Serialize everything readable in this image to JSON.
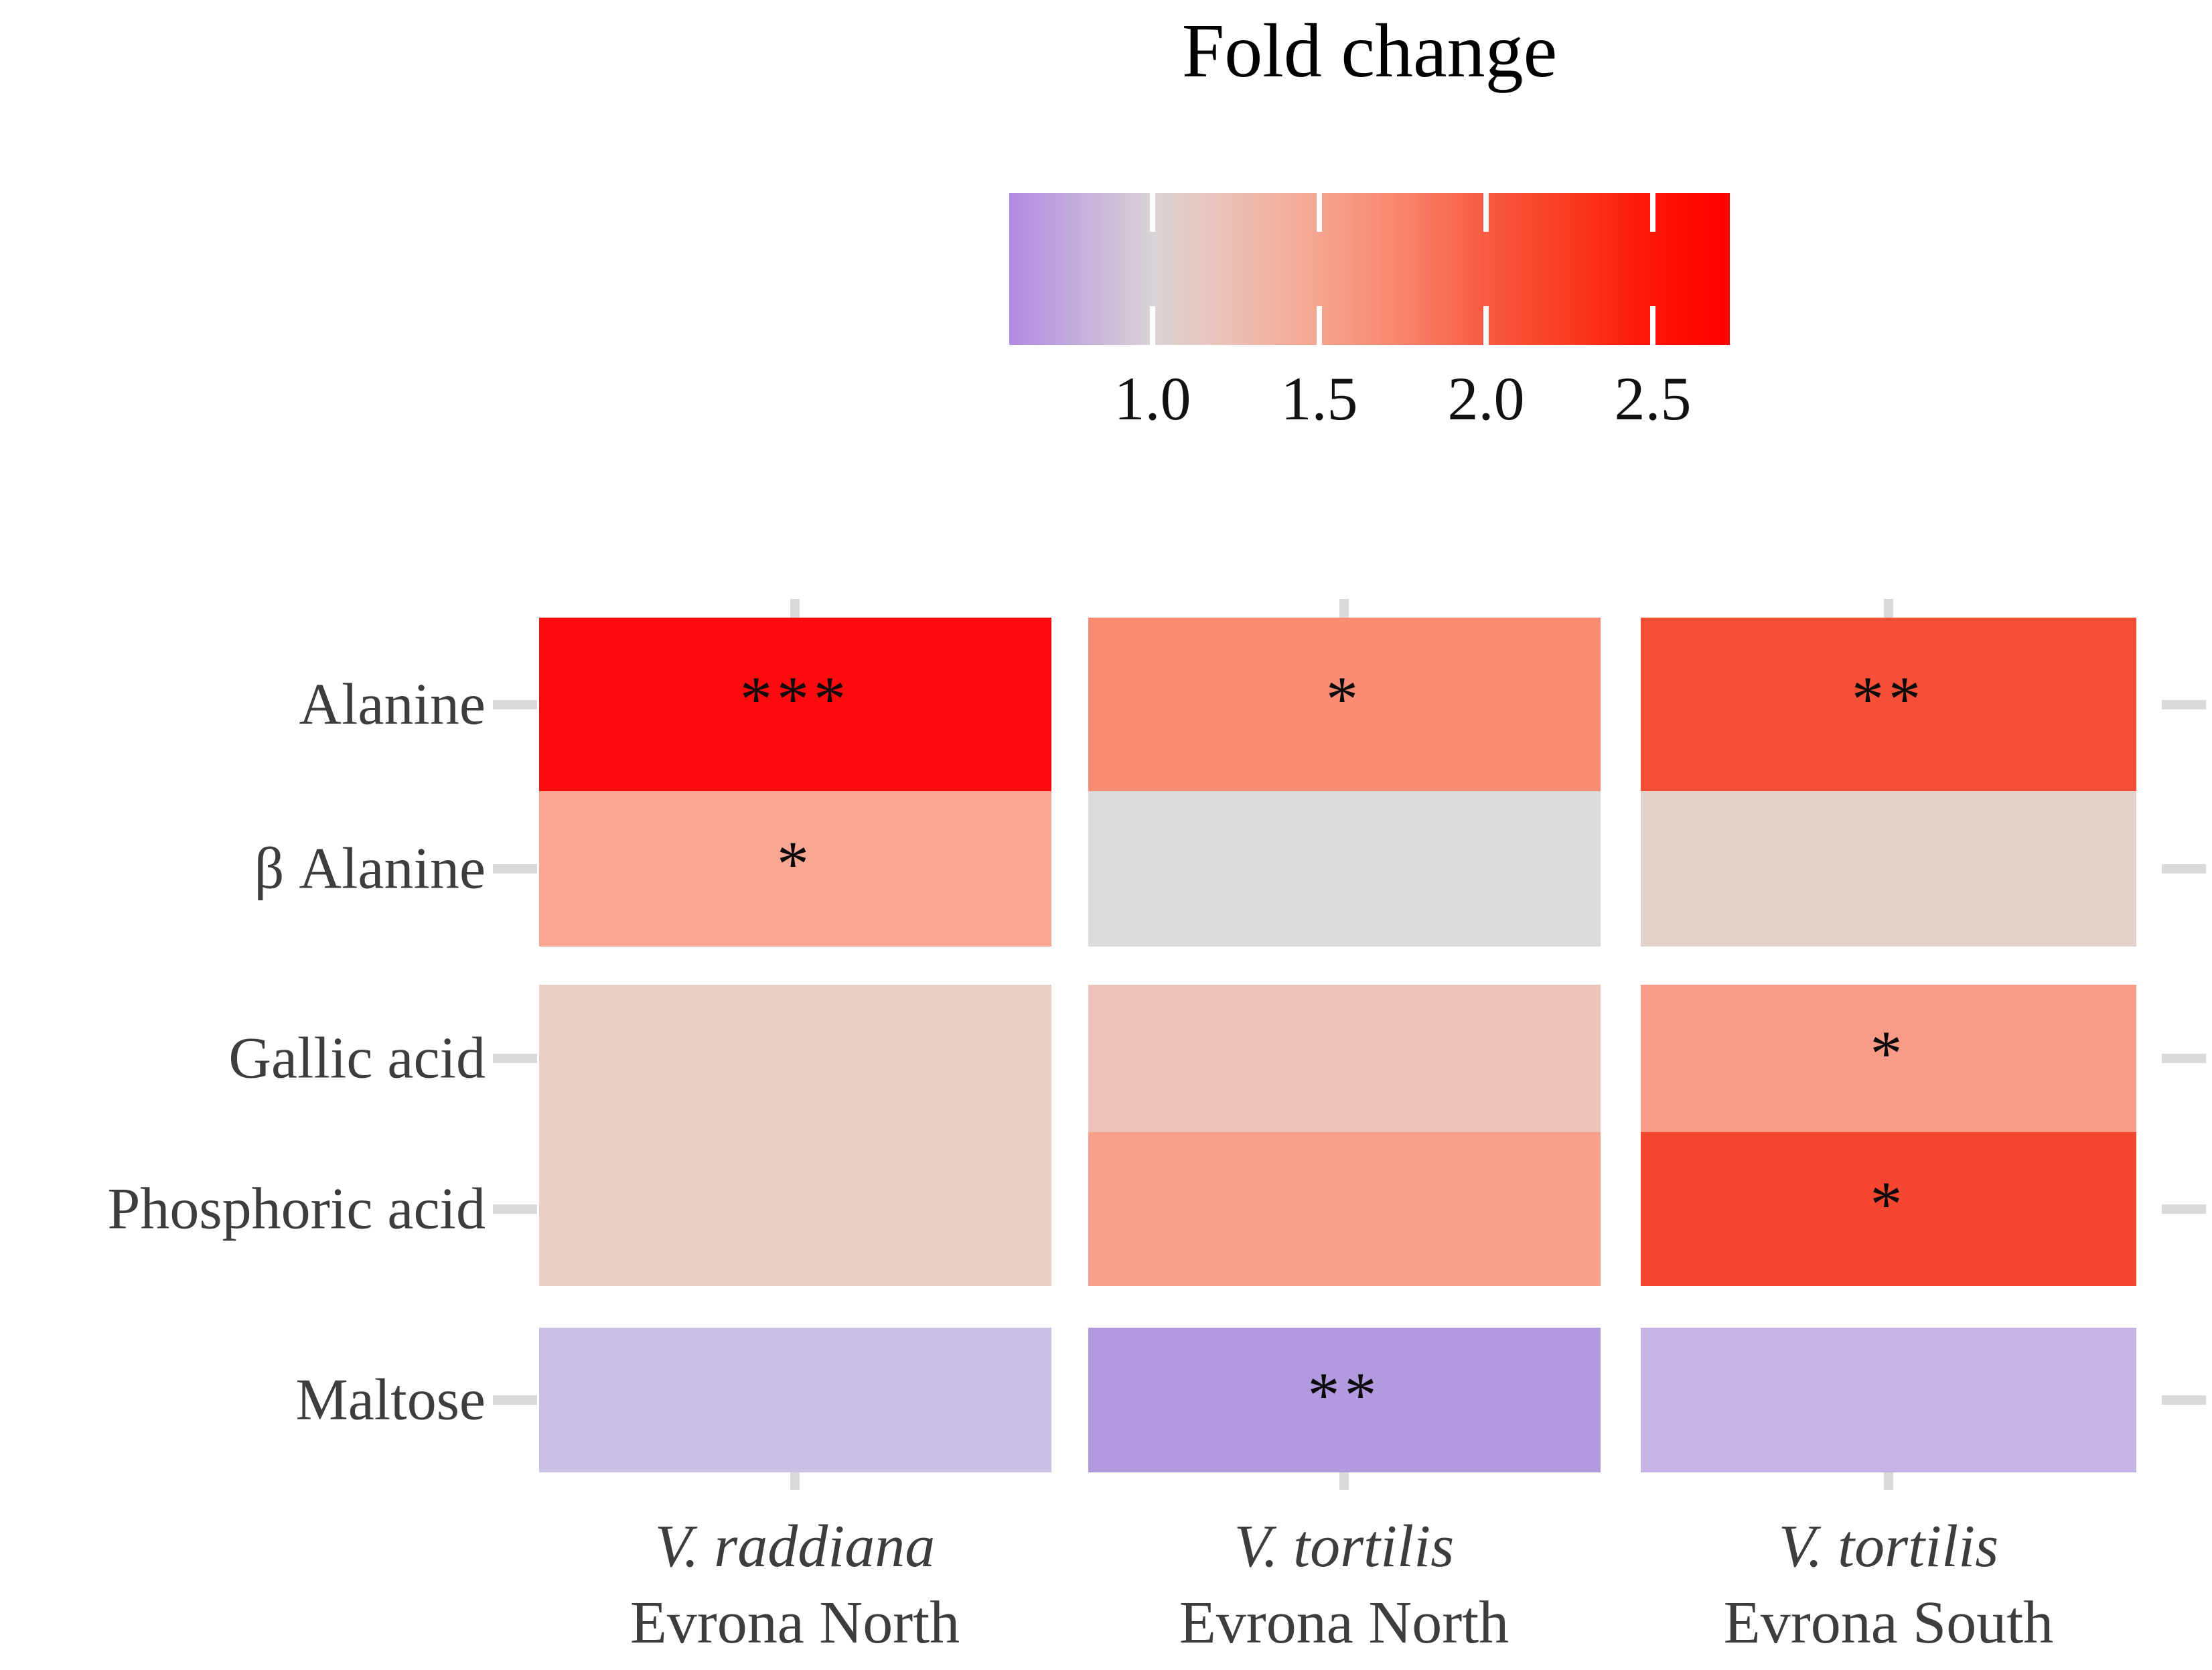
{
  "title": "Fold change",
  "legend": {
    "ticks": [
      {
        "label": "1.0"
      },
      {
        "label": "1.5"
      },
      {
        "label": "2.0"
      },
      {
        "label": "2.5"
      }
    ],
    "gradient_stops": [
      "#B18BE1 0%",
      "#D9D3D6 20%",
      "#EBC2B8 30%",
      "#F5A48F 43%",
      "#F8836B 55%",
      "#F75B41 66%",
      "#F93A22 78%",
      "#FC1507 89%",
      "#FF0000 100%"
    ]
  },
  "rows": [
    {
      "label": "Alanine"
    },
    {
      "label": "β Alanine"
    },
    {
      "label": "Gallic acid"
    },
    {
      "label": "Phosphoric acid"
    },
    {
      "label": "Maltose"
    }
  ],
  "columns": [
    {
      "species": "V. raddiana",
      "site": "Evrona North"
    },
    {
      "species": "V. tortilis",
      "site": "Evrona North"
    },
    {
      "species": "V. tortilis",
      "site": "Evrona South"
    }
  ],
  "cells": [
    {
      "row": "Alanine",
      "column": 0,
      "color": "#FB0B0E",
      "stars": "***"
    },
    {
      "row": "Alanine",
      "column": 1,
      "color": "#F98B72",
      "stars": "*"
    },
    {
      "row": "Alanine",
      "column": 2,
      "color": "#F64F38",
      "stars": "**"
    },
    {
      "row": "β Alanine",
      "column": 0,
      "color": "#F8A795",
      "stars": "*"
    },
    {
      "row": "β Alanine",
      "column": 1,
      "color": "#DCDCDE",
      "stars": ""
    },
    {
      "row": "β Alanine",
      "column": 2,
      "color": "#E3D2CC",
      "stars": ""
    },
    {
      "row": "Gallic acid",
      "column": 0,
      "color": "#E9CFC6",
      "stars": ""
    },
    {
      "row": "Gallic acid",
      "column": 1,
      "color": "#EEC3B9",
      "stars": ""
    },
    {
      "row": "Gallic acid",
      "column": 2,
      "color": "#F99C87",
      "stars": "*"
    },
    {
      "row": "Phosphoric acid",
      "column": 0,
      "color": "#E9CFC6",
      "stars": ""
    },
    {
      "row": "Phosphoric acid",
      "column": 1,
      "color": "#F7A18C",
      "stars": ""
    },
    {
      "row": "Phosphoric acid",
      "column": 2,
      "color": "#F5462F",
      "stars": "*"
    },
    {
      "row": "Maltose",
      "column": 0,
      "color": "#CCBFE4",
      "stars": ""
    },
    {
      "row": "Maltose",
      "column": 1,
      "color": "#B29ADF",
      "stars": "**"
    },
    {
      "row": "Maltose",
      "column": 2,
      "color": "#C5B3E6",
      "stars": ""
    }
  ],
  "chart_data": {
    "type": "heatmap",
    "title": "Fold change",
    "rows": [
      "Alanine",
      "β Alanine",
      "Gallic acid",
      "Phosphoric acid",
      "Maltose"
    ],
    "row_groups": [
      [
        "Alanine",
        "β Alanine"
      ],
      [
        "Gallic acid",
        "Phosphoric acid"
      ],
      [
        "Maltose"
      ]
    ],
    "columns": [
      "V. raddiana Evrona North",
      "V. tortilis Evrona North",
      "V. tortilis Evrona South"
    ],
    "values_fold_change_approx": [
      [
        2.7,
        1.6,
        2.2
      ],
      [
        1.5,
        1.0,
        1.1
      ],
      [
        1.2,
        1.25,
        1.45
      ],
      [
        1.2,
        1.4,
        2.25
      ],
      [
        0.85,
        0.7,
        0.8
      ]
    ],
    "significance": [
      [
        "***",
        "*",
        "**"
      ],
      [
        "*",
        "",
        ""
      ],
      [
        "",
        "",
        "*"
      ],
      [
        "",
        "",
        "*"
      ],
      [
        "",
        "**",
        ""
      ]
    ],
    "colorbar": {
      "label": "Fold change",
      "tick_values": [
        1.0,
        1.5,
        2.0,
        2.5
      ],
      "range_approx": [
        0.57,
        2.73
      ],
      "midpoint": 1.0,
      "low_color": "#B18BE1",
      "mid_color": "#D9D3D6",
      "high_color": "#FF0000"
    },
    "legend_position": "top",
    "grid": false
  }
}
